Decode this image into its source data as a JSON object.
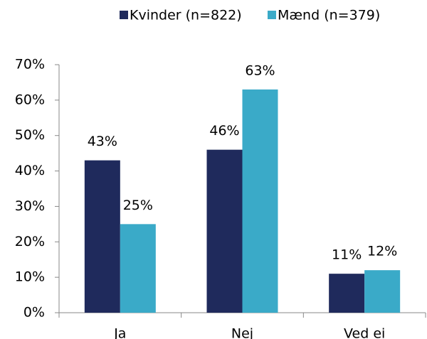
{
  "chart_data": {
    "type": "bar",
    "categories": [
      "Ja",
      "Nej",
      "Ved ei"
    ],
    "series": [
      {
        "name": "Kvinder (n=822)",
        "color": "#1f2a5c",
        "values": [
          43,
          46,
          11
        ],
        "value_labels": [
          "43%",
          "46%",
          "11%"
        ]
      },
      {
        "name": "Mænd (n=379)",
        "color": "#3aaac8",
        "values": [
          25,
          63,
          12
        ],
        "value_labels": [
          "25%",
          "63%",
          "12%"
        ]
      }
    ],
    "ylim": [
      0,
      70
    ],
    "yticks": [
      {
        "value": 0,
        "label": "0%"
      },
      {
        "value": 10,
        "label": "10%"
      },
      {
        "value": 20,
        "label": "20%"
      },
      {
        "value": 30,
        "label": "30%"
      },
      {
        "value": 40,
        "label": "40%"
      },
      {
        "value": 50,
        "label": "50%"
      },
      {
        "value": 60,
        "label": "60%"
      },
      {
        "value": 70,
        "label": "70%"
      }
    ],
    "legend": "top"
  }
}
